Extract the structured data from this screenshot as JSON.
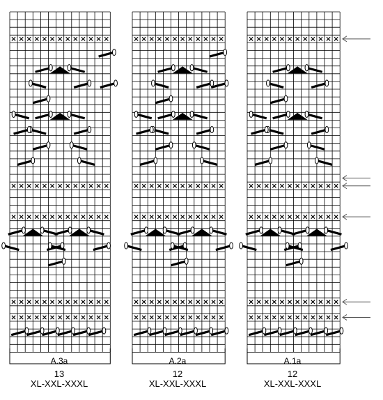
{
  "charts": [
    {
      "name": "A.3a",
      "stitches": "13",
      "sizes": "XL-XXL-XXXL",
      "cols": 13
    },
    {
      "name": "A.2a",
      "stitches": "12",
      "sizes": "XL-XXL-XXXL",
      "cols": 12
    },
    {
      "name": "A.1a",
      "stitches": "12",
      "sizes": "XL-XXL-XXXL",
      "cols": 12
    }
  ],
  "grid": {
    "rows": 44
  },
  "purl_rows": [
    3,
    22,
    26,
    37,
    39
  ],
  "decrease_rows": [
    7,
    13,
    28
  ],
  "arrow_rows": [
    3,
    21,
    22,
    26,
    37,
    39
  ],
  "colors": {
    "line": "#000000",
    "background": "#ffffff",
    "arrow": "#555555"
  },
  "icons": [
    "purl-cross",
    "slip-stitch-strand",
    "double-decrease-triangle",
    "row-arrow"
  ]
}
